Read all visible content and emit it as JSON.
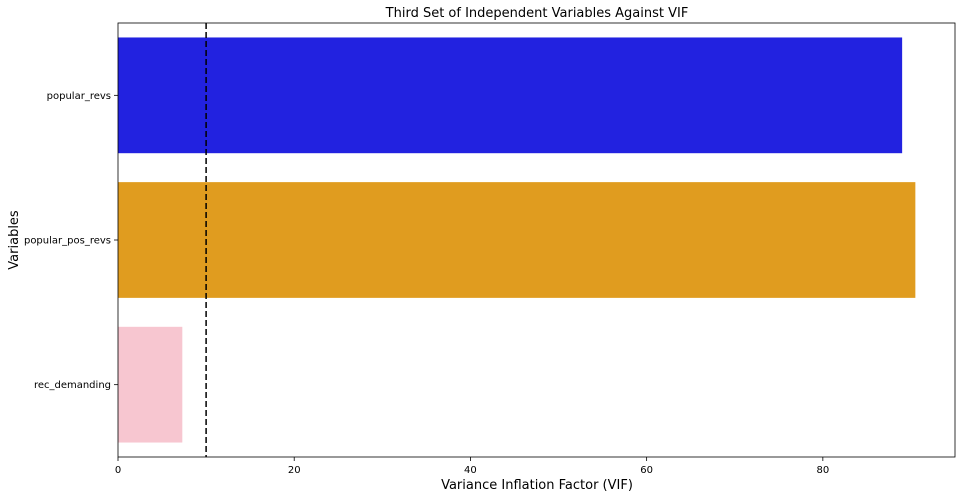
{
  "chart_data": {
    "type": "bar",
    "orientation": "horizontal",
    "title": "Third Set of Independent Variables Against VIF",
    "xlabel": "Variance Inflation Factor (VIF)",
    "ylabel": "Variables",
    "categories": [
      "popular_revs",
      "popular_pos_revs",
      "rec_demanding"
    ],
    "values": [
      89.0,
      90.5,
      7.3
    ],
    "colors": [
      "#2222e0",
      "#e09c1f",
      "#f7c6d0"
    ],
    "xlim": [
      0,
      95
    ],
    "xticks": [
      0,
      20,
      40,
      60,
      80
    ],
    "reference_line": {
      "x": 10,
      "style": "dashed",
      "color": "#000000"
    },
    "grid": false
  }
}
